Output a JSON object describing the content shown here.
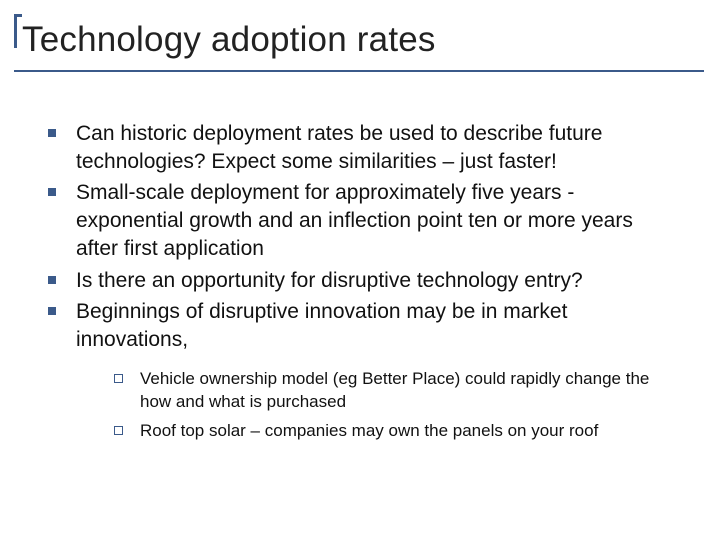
{
  "title": "Technology adoption rates",
  "colors": {
    "accent": "#3b5a8a",
    "text": "#111111",
    "background": "#ffffff"
  },
  "typography": {
    "title_fontsize": 35,
    "body_fontsize": 21,
    "sub_fontsize": 17,
    "font_family": "Arial"
  },
  "bullets": [
    "Can historic deployment rates be used to describe future technologies? Expect some similarities – just faster!",
    "Small-scale deployment for approximately five years - exponential growth and an inflection point ten or more years after first application",
    "Is there an opportunity for disruptive technology entry?",
    "Beginnings of disruptive innovation may be in market innovations,"
  ],
  "sub_bullets": [
    "Vehicle ownership model (eg Better Place) could rapidly change the how and what is purchased",
    "Roof top solar – companies may own the panels on your roof"
  ]
}
